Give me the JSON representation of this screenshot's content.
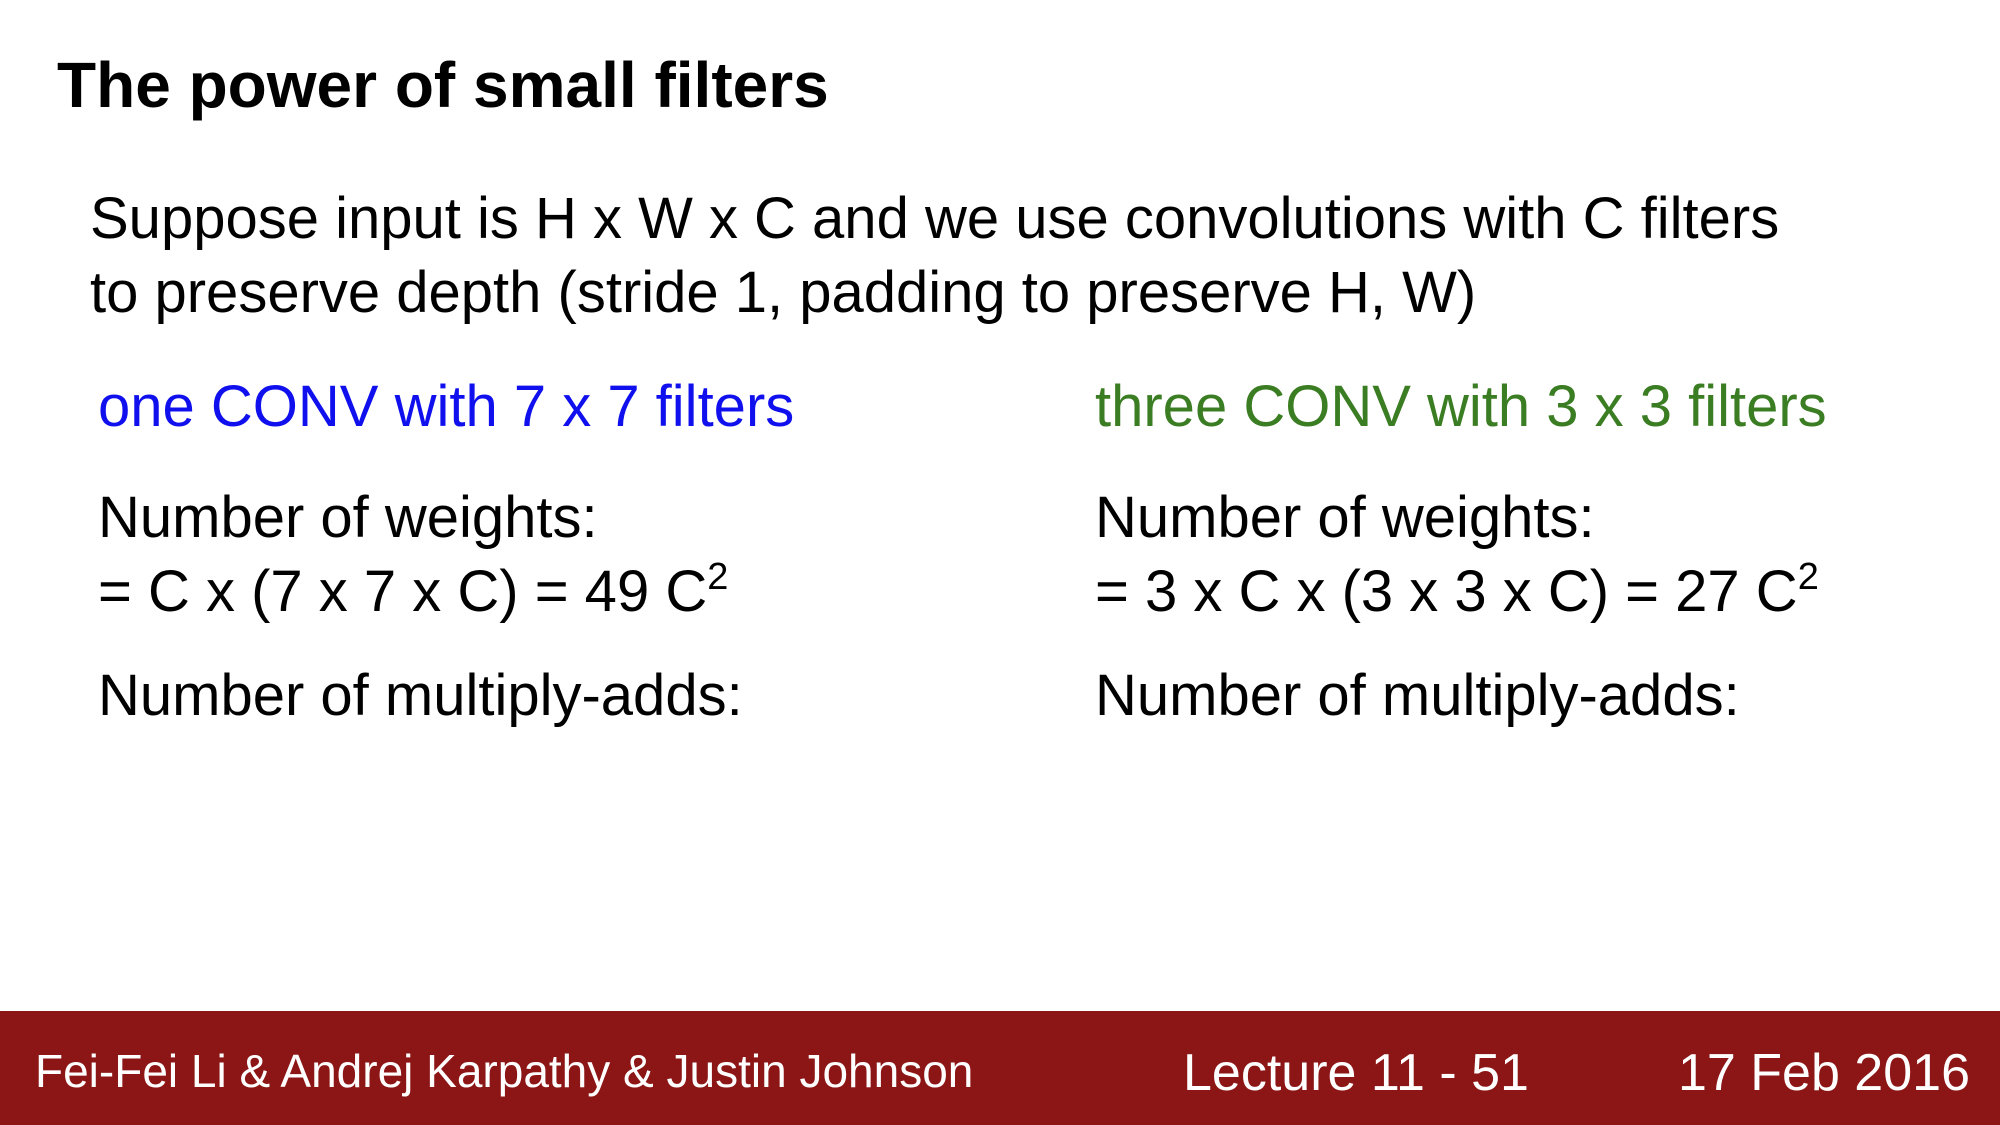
{
  "slide": {
    "title": "The power of small filters",
    "intro_line1": "Suppose input is H x W x C and we use convolutions with C filters",
    "intro_line2": "to preserve depth (stride 1, padding to preserve H, W)"
  },
  "left_column": {
    "heading": "one CONV with 7 x 7 filters",
    "heading_color": "#1010ee",
    "weights_label": "Number of weights:",
    "weights_formula": "= C x (7 x 7 x C) = 49 C",
    "weights_exponent": "2",
    "multiply_adds_label": "Number of multiply-adds:"
  },
  "right_column": {
    "heading": "three CONV with 3 x 3 filters",
    "heading_color": "#3a7d22",
    "weights_label": "Number of weights:",
    "weights_formula": "= 3 x C x (3 x 3 x C) = 27 C",
    "weights_exponent": "2",
    "multiply_adds_label": "Number of multiply-adds:"
  },
  "footer": {
    "authors": "Fei-Fei Li & Andrej Karpathy & Justin Johnson",
    "lecture": "Lecture 11 - 51",
    "date": "17 Feb 2016",
    "background_color": "#8c1515"
  }
}
